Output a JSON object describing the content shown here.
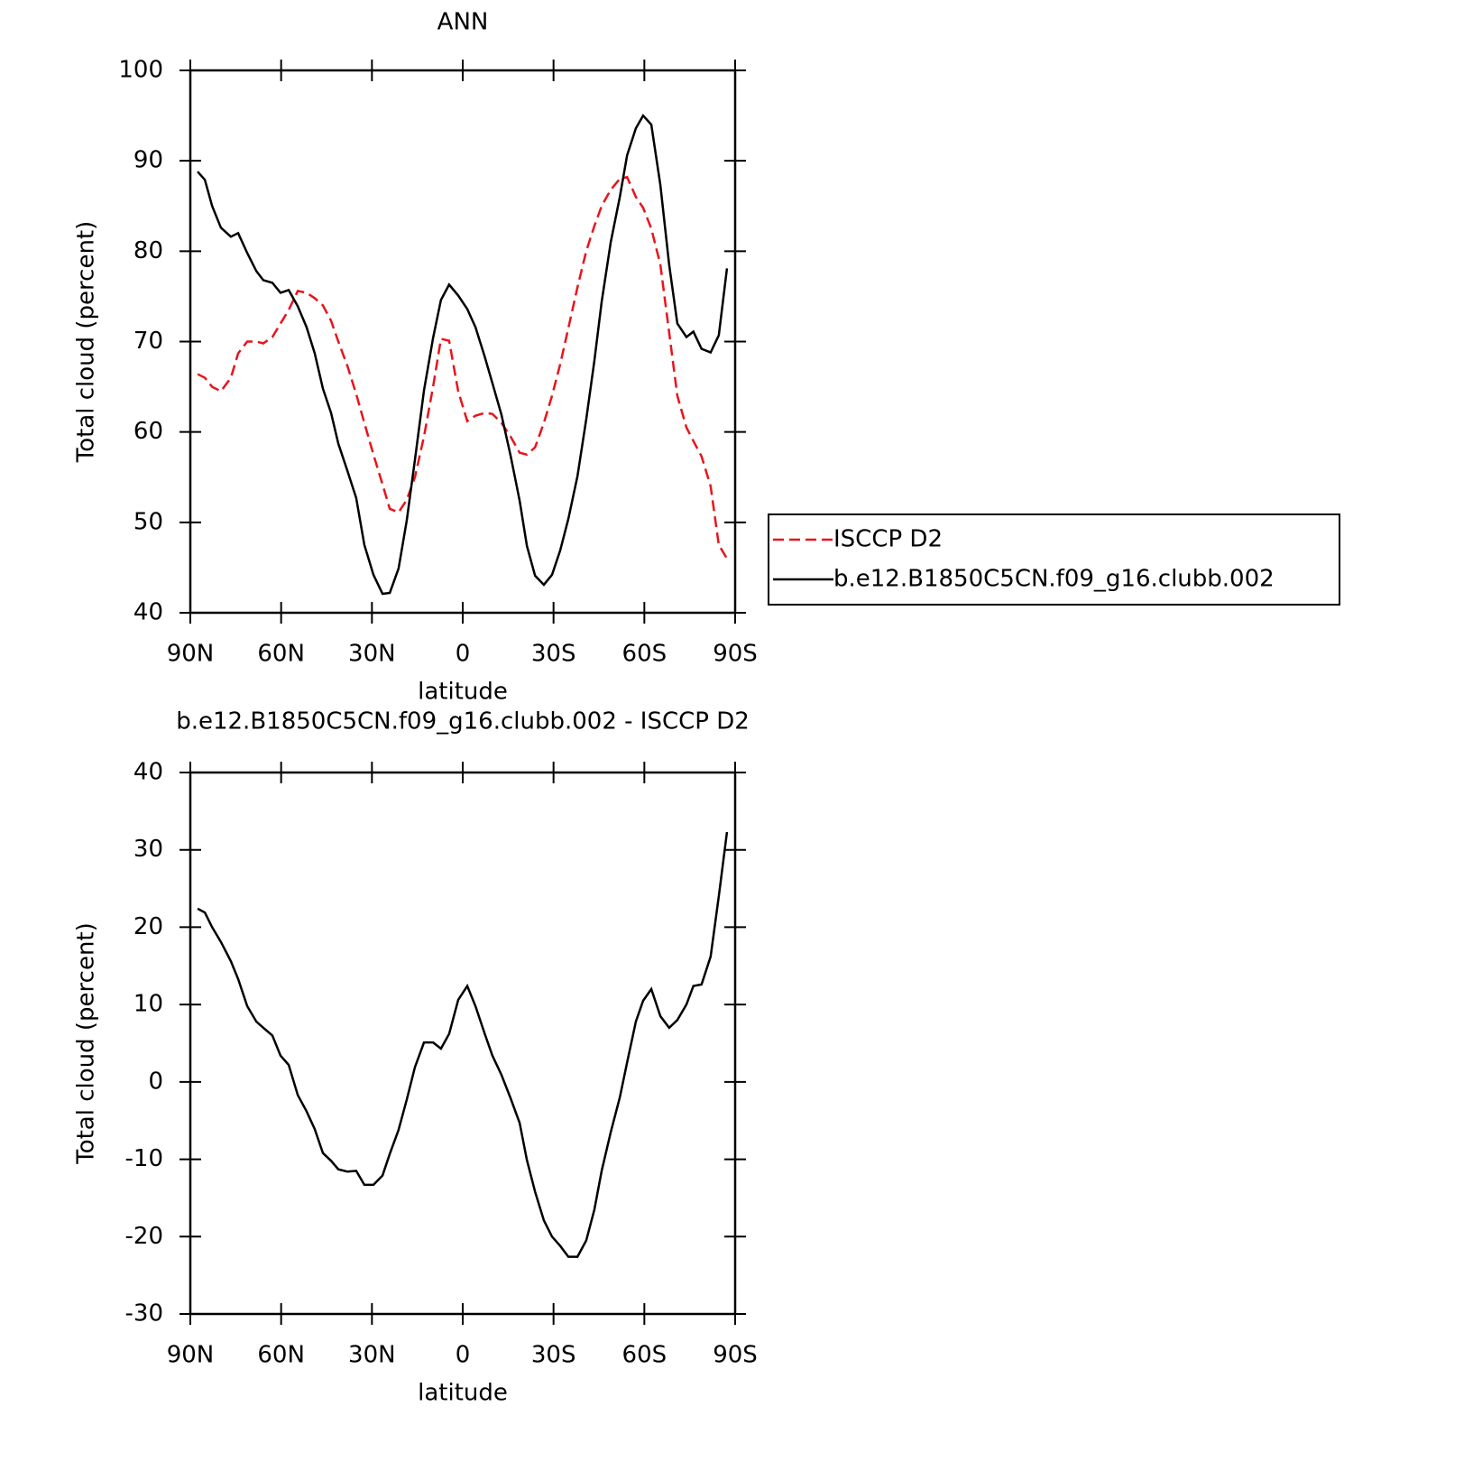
{
  "chart_data": [
    {
      "type": "line",
      "title": "ANN",
      "x_label": "latitude",
      "y_label": "Total cloud (percent)",
      "x": [
        87.6,
        85.2,
        82.8,
        79.9,
        76.6,
        74.2,
        71.2,
        68.2,
        65.9,
        62.9,
        60.2,
        57.5,
        54.5,
        51.6,
        48.9,
        46.2,
        43.5,
        41.1,
        38.1,
        35.2,
        32.5,
        29.5,
        26.5,
        24.1,
        21.2,
        18.5,
        15.8,
        12.8,
        9.8,
        7.2,
        4.5,
        1.5,
        -1.5,
        -4.2,
        -7.2,
        -9.8,
        -12.8,
        -15.8,
        -18.8,
        -21.2,
        -23.9,
        -26.8,
        -29.5,
        -32.2,
        -34.9,
        -37.9,
        -40.8,
        -43.5,
        -45.9,
        -48.9,
        -51.9,
        -54.3,
        -57.2,
        -59.6,
        -62.3,
        -65.3,
        -68.2,
        -70.9,
        -73.9,
        -76.2,
        -78.9,
        -81.9,
        -84.6,
        -87.3
      ],
      "series": [
        {
          "name": "ISCCP D2",
          "color": "#e8141c",
          "line_style": "dashed",
          "values": [
            66.4,
            66.0,
            65.0,
            64.5,
            66.0,
            68.7,
            70.0,
            70.0,
            69.8,
            70.5,
            72.0,
            73.5,
            75.6,
            75.4,
            74.8,
            74.0,
            72.3,
            70.0,
            67.3,
            64.2,
            61.0,
            57.5,
            54.2,
            51.5,
            51.1,
            52.5,
            55.0,
            59.5,
            65.0,
            70.3,
            70.1,
            64.5,
            61.2,
            61.8,
            62.1,
            62.0,
            61.0,
            59.5,
            57.7,
            57.5,
            58.3,
            61.0,
            64.0,
            67.5,
            71.5,
            76.0,
            80.0,
            82.8,
            85.0,
            86.8,
            88.0,
            88.2,
            86.0,
            84.8,
            82.5,
            78.5,
            71.0,
            64.0,
            60.5,
            59.0,
            57.3,
            54.0,
            47.5,
            46.0
          ]
        },
        {
          "name": "b.e12.B1850C5CN.f09_g16.clubb.002",
          "color": "#000000",
          "line_style": "solid",
          "values": [
            88.8,
            87.9,
            85.0,
            82.6,
            81.6,
            82.0,
            79.8,
            77.8,
            76.8,
            76.5,
            75.4,
            75.7,
            73.9,
            71.6,
            68.7,
            64.8,
            62.1,
            58.7,
            55.7,
            52.7,
            47.5,
            44.2,
            42.1,
            42.2,
            44.9,
            50.2,
            56.9,
            64.6,
            70.4,
            74.6,
            76.3,
            75.1,
            73.6,
            71.6,
            68.4,
            65.4,
            61.9,
            57.4,
            52.4,
            47.4,
            44.1,
            43.1,
            44.2,
            46.9,
            50.4,
            55.1,
            61.4,
            67.9,
            74.4,
            81.0,
            86.0,
            90.6,
            93.6,
            95.0,
            94.0,
            87.3,
            78.5,
            72.0,
            70.5,
            71.1,
            69.2,
            68.8,
            70.7,
            78.1
          ]
        }
      ],
      "xlim": [
        90,
        -90
      ],
      "xticks": [
        {
          "value": 90,
          "label": "90N"
        },
        {
          "value": 60,
          "label": "60N"
        },
        {
          "value": 30,
          "label": "30N"
        },
        0,
        {
          "value": -30,
          "label": "30S"
        },
        {
          "value": -60,
          "label": "60S"
        },
        {
          "value": -90,
          "label": "90S"
        }
      ],
      "ylim": [
        40,
        100
      ],
      "yticks": [
        40,
        50,
        60,
        70,
        80,
        90,
        100
      ],
      "legend": "right"
    },
    {
      "type": "line",
      "title": "b.e12.B1850C5CN.f09_g16.clubb.002 - ISCCP D2",
      "x_label": "latitude",
      "y_label": "Total cloud (percent)",
      "x": [
        87.6,
        85.2,
        82.8,
        79.9,
        76.6,
        74.2,
        71.2,
        68.2,
        65.9,
        62.9,
        60.2,
        57.5,
        54.5,
        51.6,
        48.9,
        46.2,
        43.5,
        41.1,
        38.1,
        35.2,
        32.5,
        29.5,
        26.5,
        24.1,
        21.2,
        18.5,
        15.8,
        12.8,
        9.8,
        7.2,
        4.5,
        1.5,
        -1.5,
        -4.2,
        -7.2,
        -9.8,
        -12.8,
        -15.8,
        -18.8,
        -21.2,
        -23.9,
        -26.8,
        -29.5,
        -32.2,
        -34.9,
        -37.9,
        -40.8,
        -43.5,
        -45.9,
        -48.9,
        -51.9,
        -54.3,
        -57.2,
        -59.6,
        -62.3,
        -65.3,
        -68.2,
        -70.9,
        -73.9,
        -76.2,
        -78.9,
        -81.9,
        -84.6,
        -87.3
      ],
      "series": [
        {
          "color": "#000000",
          "line_style": "solid",
          "values": [
            22.4,
            21.9,
            20.0,
            18.1,
            15.6,
            13.3,
            9.8,
            7.8,
            7.0,
            6.0,
            3.4,
            2.2,
            -1.7,
            -3.8,
            -6.1,
            -9.2,
            -10.2,
            -11.3,
            -11.6,
            -11.5,
            -13.3,
            -13.3,
            -12.1,
            -9.3,
            -6.2,
            -2.3,
            1.9,
            5.1,
            5.1,
            4.3,
            6.2,
            10.6,
            12.4,
            9.8,
            6.3,
            3.4,
            0.9,
            -2.1,
            -5.3,
            -10.1,
            -14.2,
            -17.9,
            -20.0,
            -21.2,
            -22.6,
            -22.6,
            -20.5,
            -16.5,
            -11.5,
            -6.5,
            -2.0,
            2.5,
            7.8,
            10.5,
            12.0,
            8.5,
            7.0,
            8.0,
            10.0,
            12.4,
            12.6,
            16.2,
            24.0,
            32.3
          ]
        }
      ],
      "xlim": [
        90,
        -90
      ],
      "xticks": [
        {
          "value": 90,
          "label": "90N"
        },
        {
          "value": 60,
          "label": "60N"
        },
        {
          "value": 30,
          "label": "30N"
        },
        0,
        {
          "value": -30,
          "label": "30S"
        },
        {
          "value": -60,
          "label": "60S"
        },
        {
          "value": -90,
          "label": "90S"
        }
      ],
      "ylim": [
        -30,
        40
      ],
      "yticks": [
        -30,
        -20,
        -10,
        0,
        10,
        20,
        30,
        40
      ]
    }
  ]
}
